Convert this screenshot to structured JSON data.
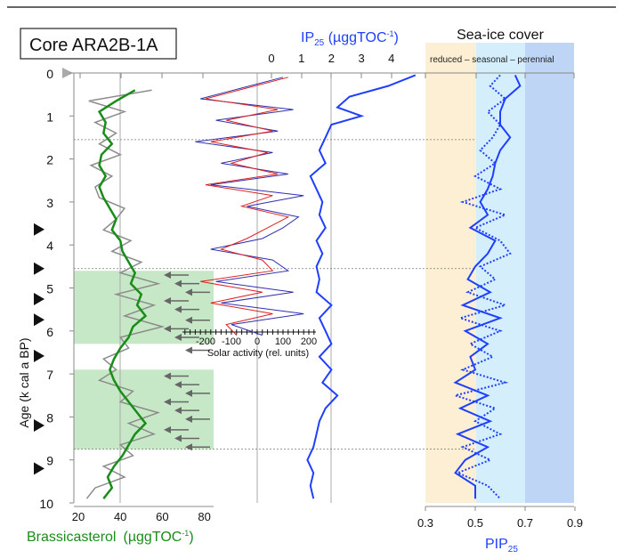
{
  "chart_data": {
    "type": "line",
    "core_label": "Core ARA2B-1A",
    "y_axis": {
      "label": "Age (k cal a BP)",
      "range": [
        0,
        10
      ],
      "ticks": [
        "0",
        "1",
        "2",
        "3",
        "4",
        "5",
        "6",
        "7",
        "8",
        "9",
        "10"
      ]
    },
    "brassicasterol": {
      "title": "Brassicasterol",
      "unit": "(µggTOC",
      "unit_sup": "-1",
      "unit_close": ")",
      "range": [
        15,
        95
      ],
      "ticks": [
        "20",
        "40",
        "60",
        "80"
      ],
      "color": "#1a8c1a",
      "raw_color": "#8c8c8c",
      "ages": [
        0.4,
        0.65,
        0.9,
        1.15,
        1.4,
        1.65,
        1.9,
        2.15,
        2.4,
        2.65,
        2.9,
        3.15,
        3.4,
        3.65,
        3.9,
        4.15,
        4.4,
        4.65,
        4.9,
        5.15,
        5.4,
        5.65,
        5.9,
        6.15,
        6.4,
        6.65,
        6.9,
        7.15,
        7.4,
        7.65,
        7.9,
        8.15,
        8.4,
        8.65,
        8.9,
        9.15,
        9.4,
        9.65,
        9.9
      ],
      "smoothed": [
        47,
        38,
        30,
        33,
        32,
        36,
        31,
        30,
        33,
        30,
        32,
        35,
        38,
        36,
        40,
        41,
        44,
        47,
        45,
        50,
        48,
        52,
        46,
        44,
        40,
        37,
        35,
        37,
        40,
        44,
        48,
        52,
        47,
        44,
        41,
        37,
        34,
        36,
        32
      ],
      "raw": [
        55,
        25,
        42,
        28,
        38,
        30,
        40,
        26,
        36,
        28,
        30,
        42,
        38,
        32,
        45,
        36,
        50,
        40,
        58,
        38,
        56,
        42,
        60,
        40,
        44,
        32,
        38,
        30,
        46,
        40,
        58,
        44,
        56,
        40,
        46,
        32,
        42,
        28,
        24
      ]
    },
    "ip25": {
      "title": "IP",
      "sub": "25",
      "unit": " (µggTOC",
      "unit_sup": "-1",
      "unit_close": ")",
      "range": [
        0,
        4.6
      ],
      "ticks": [
        "0",
        "1",
        "2",
        "3",
        "4"
      ],
      "color": "#1f3fff",
      "ages": [
        0.05,
        0.3,
        0.55,
        0.8,
        1.0,
        1.2,
        1.5,
        1.8,
        2.1,
        2.4,
        2.7,
        3.0,
        3.3,
        3.6,
        3.9,
        4.2,
        4.5,
        4.8,
        5.1,
        5.4,
        5.7,
        6.0,
        6.3,
        6.6,
        6.9,
        7.2,
        7.5,
        7.8,
        8.1,
        8.4,
        8.7,
        9.0,
        9.3,
        9.6,
        9.9
      ],
      "values": [
        4.8,
        3.9,
        2.6,
        2.2,
        3.0,
        2.0,
        1.8,
        1.6,
        1.8,
        1.3,
        1.5,
        1.7,
        1.6,
        1.8,
        1.5,
        1.7,
        1.5,
        1.6,
        1.5,
        2.0,
        1.6,
        1.8,
        2.0,
        1.6,
        2.0,
        1.7,
        2.2,
        1.8,
        1.6,
        1.5,
        1.4,
        1.2,
        1.4,
        1.3,
        1.4
      ]
    },
    "solar": {
      "xlabel": "Solar activity (rel. units)",
      "range": [
        -250,
        250
      ],
      "ticks": [
        "-200",
        "-100",
        "0",
        "100",
        "200"
      ],
      "series_colors": [
        "#e02020",
        "#3030b0"
      ],
      "ages": [
        0.1,
        0.35,
        0.6,
        0.85,
        1.1,
        1.35,
        1.6,
        1.85,
        2.1,
        2.35,
        2.6,
        2.85,
        3.1,
        3.35,
        3.6,
        3.85,
        4.1,
        4.35,
        4.6,
        4.85,
        5.1,
        5.35,
        5.6,
        5.85,
        6.1
      ],
      "series_a": [
        120,
        -40,
        -200,
        80,
        -120,
        60,
        -180,
        40,
        -100,
        80,
        -200,
        60,
        -60,
        120,
        40,
        -40,
        -140,
        20,
        60,
        -220,
        20,
        -180,
        60,
        -120,
        -80
      ],
      "series_b": [
        100,
        -60,
        -220,
        140,
        -160,
        80,
        -240,
        60,
        -140,
        120,
        -180,
        180,
        -40,
        160,
        100,
        20,
        -180,
        60,
        120,
        -160,
        140,
        -140,
        180,
        -100,
        20
      ]
    },
    "pip25": {
      "title": "PIP",
      "sub": "25",
      "range": [
        0.3,
        0.92
      ],
      "ticks": [
        "0.3",
        "0.5",
        "0.7",
        "0.9"
      ],
      "color": "#1f3fff",
      "ages": [
        0.05,
        0.3,
        0.6,
        0.9,
        1.2,
        1.5,
        1.8,
        2.1,
        2.4,
        2.7,
        3.0,
        3.3,
        3.6,
        3.9,
        4.2,
        4.5,
        4.8,
        5.1,
        5.4,
        5.7,
        6.0,
        6.3,
        6.6,
        6.9,
        7.2,
        7.5,
        7.8,
        8.1,
        8.4,
        8.7,
        9.0,
        9.3,
        9.6,
        9.9
      ],
      "solid": [
        0.66,
        0.68,
        0.62,
        0.6,
        0.6,
        0.64,
        0.6,
        0.58,
        0.57,
        0.55,
        0.52,
        0.55,
        0.48,
        0.58,
        0.55,
        0.5,
        0.47,
        0.56,
        0.45,
        0.6,
        0.46,
        0.55,
        0.48,
        0.5,
        0.42,
        0.55,
        0.44,
        0.56,
        0.43,
        0.55,
        0.46,
        0.42,
        0.5,
        0.5
      ],
      "dotted": [
        0.6,
        0.56,
        0.62,
        0.55,
        0.6,
        0.57,
        0.52,
        0.58,
        0.5,
        0.6,
        0.45,
        0.62,
        0.5,
        0.6,
        0.64,
        0.52,
        0.58,
        0.47,
        0.62,
        0.44,
        0.6,
        0.48,
        0.57,
        0.45,
        0.62,
        0.42,
        0.58,
        0.5,
        0.6,
        0.45,
        0.56,
        0.43,
        0.55,
        0.6
      ]
    },
    "sea_ice": {
      "title": "Sea-ice cover",
      "regimes": [
        "reduced",
        "seasonal",
        "perennial"
      ],
      "separator": "–",
      "colors": [
        "#fdefd3",
        "#d4effb",
        "#bfd5f6"
      ]
    },
    "shaded_intervals": [
      [
        4.6,
        6.3
      ],
      [
        6.9,
        8.75
      ]
    ],
    "dotted_lines_age": [
      1.55,
      4.55,
      8.75
    ],
    "triangle_markers_age": [
      3.64,
      4.55,
      5.26,
      5.74,
      6.58,
      8.2,
      9.2
    ],
    "arrow_markers_age": [
      4.7,
      4.9,
      5.1,
      5.3,
      5.5,
      5.75,
      5.95,
      6.15,
      6.45,
      7.05,
      7.25,
      7.45,
      7.65,
      7.85,
      8.05,
      8.3,
      8.5,
      8.7
    ]
  }
}
